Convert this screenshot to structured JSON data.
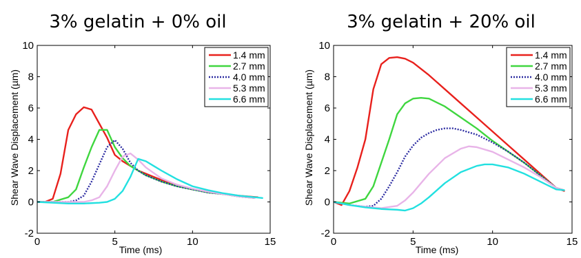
{
  "chart_data": [
    {
      "type": "line",
      "title": "3% gelatin + 0% oil",
      "xlabel": "Time (ms)",
      "ylabel": "Shear Wave Displacement (µm)",
      "xlim": [
        0,
        15
      ],
      "ylim": [
        -2,
        10
      ],
      "xticks": [
        0,
        5,
        10,
        15
      ],
      "yticks": [
        -2,
        0,
        2,
        4,
        6,
        8,
        10
      ],
      "xtick_labels": [
        "0",
        "5",
        "10",
        "15"
      ],
      "ytick_labels": [
        "-2",
        "0",
        "2",
        "4",
        "6",
        "8",
        "10"
      ],
      "grid": false,
      "legend_position": "top-right",
      "series": [
        {
          "name": "1.4 mm",
          "color": "#e8201c",
          "dash": "solid",
          "x": [
            0,
            0.5,
            1.0,
            1.5,
            2.0,
            2.5,
            3.0,
            3.5,
            4.0,
            4.5,
            5.0,
            5.5,
            6.0,
            6.5,
            7.0,
            8.0,
            9.0,
            10.0,
            11.0,
            12.0,
            13.0,
            14.2
          ],
          "y": [
            0,
            0,
            0.2,
            1.8,
            4.6,
            5.6,
            6.05,
            5.9,
            5.0,
            4.1,
            3.0,
            2.6,
            2.3,
            2.0,
            1.8,
            1.4,
            1.1,
            0.8,
            0.65,
            0.5,
            0.4,
            0.3
          ]
        },
        {
          "name": "2.7 mm",
          "color": "#3fd63f",
          "dash": "solid",
          "x": [
            0,
            1.0,
            2.0,
            2.5,
            3.0,
            3.5,
            4.0,
            4.5,
            5.0,
            5.5,
            6.0,
            6.5,
            7.0,
            8.0,
            9.0,
            10.0,
            11.0,
            12.0,
            13.0,
            14.0
          ],
          "y": [
            0,
            0,
            0.3,
            0.8,
            2.2,
            3.5,
            4.6,
            4.6,
            3.5,
            2.8,
            2.3,
            2.0,
            1.7,
            1.3,
            1.0,
            0.8,
            0.6,
            0.5,
            0.35,
            0.25
          ]
        },
        {
          "name": "4.0 mm",
          "color": "#2a2aa0",
          "dash": "dotted",
          "x": [
            0,
            1.0,
            2.0,
            2.5,
            3.0,
            3.5,
            4.0,
            4.5,
            5.0,
            5.5,
            6.0,
            6.5,
            7.0,
            8.0,
            9.0,
            10.0,
            11.0,
            12.0,
            13.0,
            14.0
          ],
          "y": [
            0,
            0,
            0,
            0.1,
            0.4,
            1.3,
            2.4,
            3.5,
            3.95,
            3.4,
            2.5,
            2.0,
            1.7,
            1.3,
            1.0,
            0.8,
            0.6,
            0.5,
            0.35,
            0.25
          ]
        },
        {
          "name": "5.3 mm",
          "color": "#e8b4e8",
          "dash": "solid",
          "x": [
            0,
            1.0,
            2.0,
            3.0,
            3.5,
            4.0,
            4.5,
            5.0,
            5.5,
            6.0,
            6.5,
            7.0,
            8.0,
            9.0,
            10.0,
            11.0,
            12.0,
            13.0,
            14.0
          ],
          "y": [
            0,
            0,
            0,
            0,
            0.1,
            0.3,
            1.0,
            2.0,
            2.9,
            3.1,
            2.7,
            2.2,
            1.5,
            1.1,
            0.85,
            0.65,
            0.5,
            0.35,
            0.25
          ]
        },
        {
          "name": "6.6 mm",
          "color": "#22e0e0",
          "dash": "solid",
          "x": [
            0,
            1.0,
            2.0,
            3.0,
            4.0,
            4.5,
            5.0,
            5.5,
            6.0,
            6.5,
            7.0,
            7.5,
            8.0,
            9.0,
            10.0,
            11.0,
            12.0,
            13.0,
            14.0,
            14.5
          ],
          "y": [
            0,
            -0.05,
            -0.1,
            -0.1,
            -0.05,
            0,
            0.2,
            0.7,
            1.6,
            2.75,
            2.6,
            2.3,
            2.0,
            1.45,
            1.0,
            0.75,
            0.55,
            0.4,
            0.3,
            0.25
          ]
        }
      ]
    },
    {
      "type": "line",
      "title": "3% gelatin + 20% oil",
      "xlabel": "Time (ms)",
      "ylabel": "Shear Wave Displacement (µm)",
      "xlim": [
        0,
        15
      ],
      "ylim": [
        -2,
        10
      ],
      "xticks": [
        0,
        5,
        10,
        15
      ],
      "yticks": [
        -2,
        0,
        2,
        4,
        6,
        8,
        10
      ],
      "xtick_labels": [
        "0",
        "5",
        "10",
        "15"
      ],
      "ytick_labels": [
        "-2",
        "0",
        "2",
        "4",
        "6",
        "8",
        "10"
      ],
      "grid": false,
      "legend_position": "top-right",
      "series": [
        {
          "name": "1.4 mm",
          "color": "#e8201c",
          "dash": "solid",
          "x": [
            0,
            0.5,
            1.0,
            1.5,
            2.0,
            2.5,
            3.0,
            3.5,
            4.0,
            4.5,
            5.0,
            6.0,
            7.0,
            8.0,
            9.0,
            10.0,
            11.0,
            12.0,
            13.0,
            14.0,
            14.5
          ],
          "y": [
            0,
            -0.2,
            0.7,
            2.2,
            4.0,
            7.2,
            8.8,
            9.2,
            9.25,
            9.15,
            8.9,
            8.1,
            7.2,
            6.3,
            5.4,
            4.5,
            3.6,
            2.7,
            1.8,
            0.9,
            0.7
          ]
        },
        {
          "name": "2.7 mm",
          "color": "#3fd63f",
          "dash": "solid",
          "x": [
            0,
            1.0,
            2.0,
            2.5,
            3.0,
            3.5,
            4.0,
            4.5,
            5.0,
            5.5,
            6.0,
            7.0,
            8.0,
            9.0,
            10.0,
            11.0,
            12.0,
            13.0,
            14.0,
            14.5
          ],
          "y": [
            0,
            -0.1,
            0.2,
            1.0,
            2.5,
            4.0,
            5.6,
            6.3,
            6.6,
            6.65,
            6.6,
            6.1,
            5.4,
            4.7,
            3.9,
            3.2,
            2.5,
            1.7,
            0.9,
            0.75
          ]
        },
        {
          "name": "4.0 mm",
          "color": "#2a2aa0",
          "dash": "dotted",
          "x": [
            0,
            1.0,
            2.0,
            2.5,
            3.0,
            3.5,
            4.0,
            4.5,
            5.0,
            5.5,
            6.0,
            6.5,
            7.0,
            7.5,
            8.0,
            9.0,
            10.0,
            11.0,
            12.0,
            13.0,
            14.0,
            14.5
          ],
          "y": [
            0,
            -0.2,
            -0.3,
            -0.25,
            0.2,
            1.0,
            1.9,
            2.9,
            3.6,
            4.1,
            4.4,
            4.6,
            4.7,
            4.7,
            4.6,
            4.3,
            3.8,
            3.2,
            2.5,
            1.7,
            0.9,
            0.75
          ]
        },
        {
          "name": "5.3 mm",
          "color": "#e8b4e8",
          "dash": "solid",
          "x": [
            0,
            1.0,
            2.0,
            3.0,
            4.0,
            4.5,
            5.0,
            5.5,
            6.0,
            7.0,
            8.0,
            8.5,
            9.0,
            10.0,
            11.0,
            12.0,
            13.0,
            14.0,
            14.5
          ],
          "y": [
            0,
            -0.2,
            -0.3,
            -0.4,
            -0.25,
            0.1,
            0.6,
            1.2,
            1.8,
            2.8,
            3.4,
            3.55,
            3.5,
            3.2,
            2.7,
            2.2,
            1.6,
            0.9,
            0.75
          ]
        },
        {
          "name": "6.6 mm",
          "color": "#22e0e0",
          "dash": "solid",
          "x": [
            0,
            1.0,
            2.0,
            3.0,
            4.0,
            4.5,
            5.0,
            5.5,
            6.0,
            7.0,
            8.0,
            9.0,
            9.5,
            10.0,
            11.0,
            12.0,
            13.0,
            14.0,
            14.5
          ],
          "y": [
            0,
            -0.2,
            -0.35,
            -0.45,
            -0.5,
            -0.55,
            -0.4,
            -0.1,
            0.3,
            1.2,
            1.9,
            2.3,
            2.4,
            2.4,
            2.2,
            1.8,
            1.3,
            0.8,
            0.75
          ]
        }
      ]
    }
  ]
}
